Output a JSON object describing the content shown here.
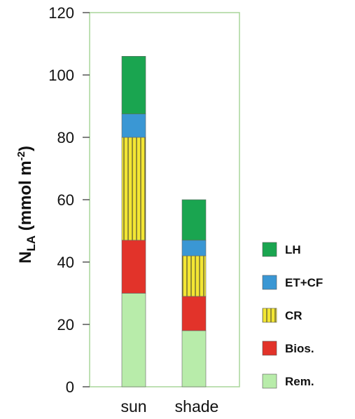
{
  "chart_data": {
    "type": "bar",
    "stacked": true,
    "categories": [
      "sun",
      "shade"
    ],
    "ylabel": {
      "main": "N",
      "sub": "LA",
      "rest": " (mmol m",
      "sup": "-2",
      "close": ")"
    },
    "ylim": [
      0,
      120
    ],
    "yticks": [
      "0",
      "20",
      "40",
      "60",
      "80",
      "100",
      "120"
    ],
    "grid": false,
    "legend_position": "right",
    "series": [
      {
        "name": "Rem.",
        "values": [
          30,
          18
        ],
        "color": "#b8ecaa",
        "pattern": "none"
      },
      {
        "name": "Bios.",
        "values": [
          17,
          11
        ],
        "color": "#e2332a",
        "pattern": "none"
      },
      {
        "name": "CR",
        "values": [
          33,
          13
        ],
        "color": "#f3e633",
        "pattern": "vertical-lines"
      },
      {
        "name": "ET+CF",
        "values": [
          7.5,
          5
        ],
        "color": "#3a97d4",
        "pattern": "none"
      },
      {
        "name": "LH",
        "values": [
          18.5,
          13
        ],
        "color": "#1aa550",
        "pattern": "none"
      }
    ],
    "legend_order": [
      "LH",
      "ET+CF",
      "CR",
      "Bios.",
      "Rem."
    ],
    "frame_color": "#a9d59a"
  }
}
